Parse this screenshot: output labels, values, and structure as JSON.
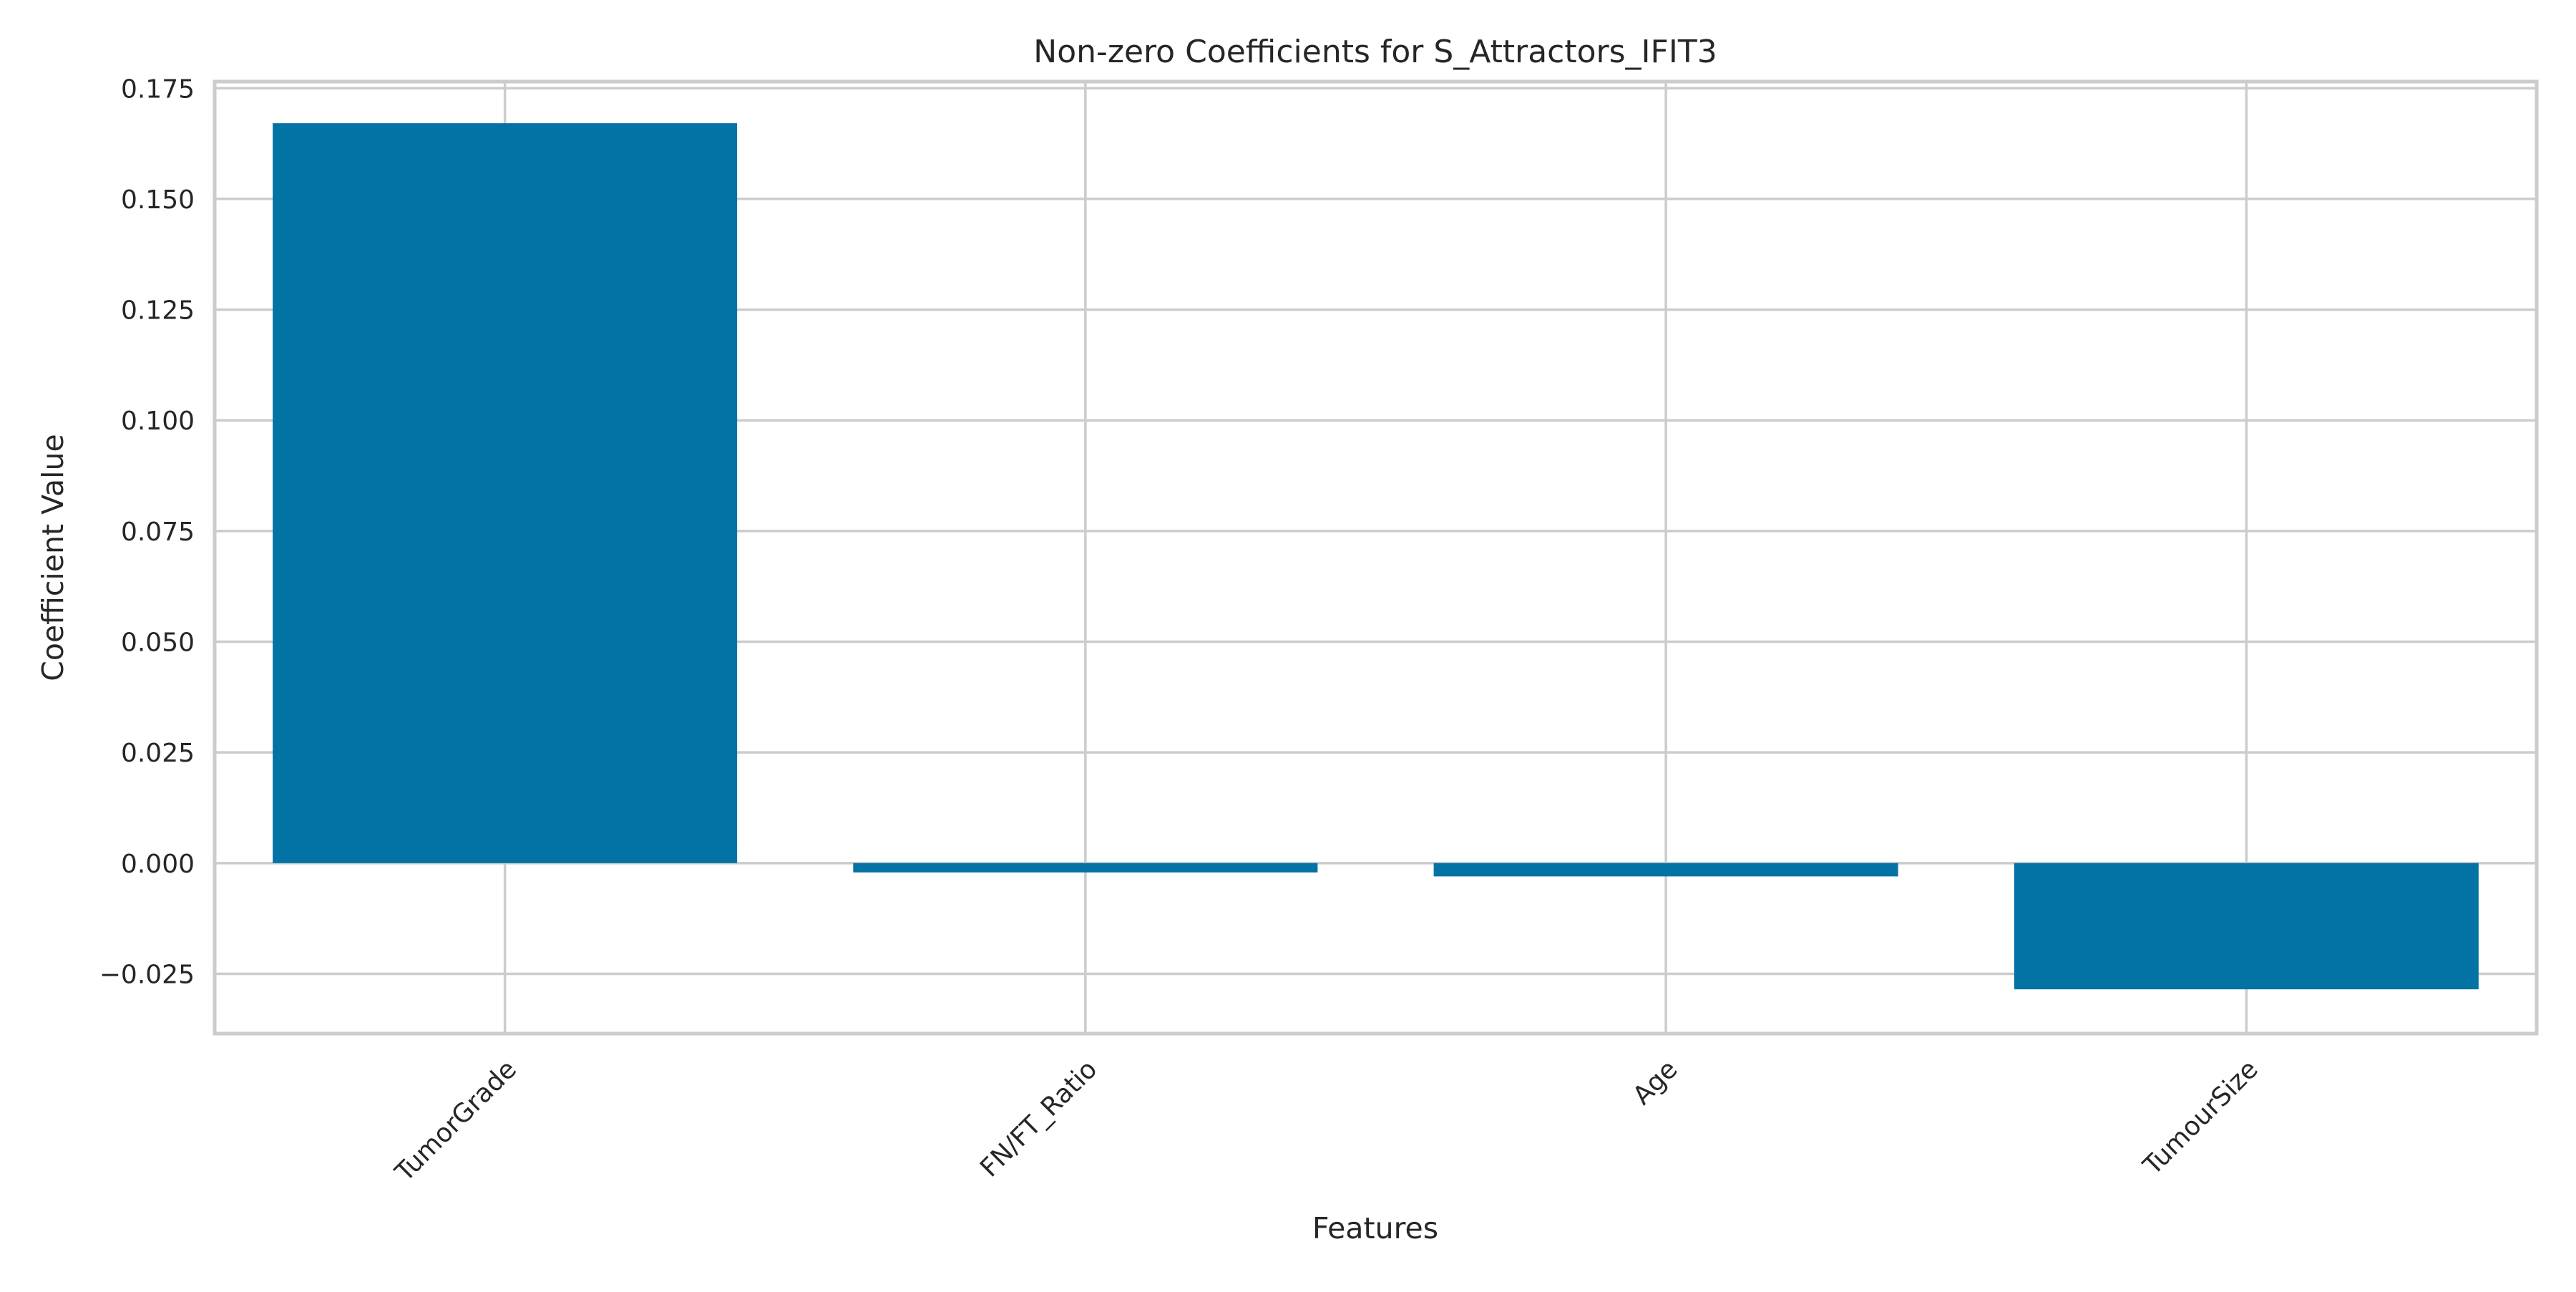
{
  "chart_data": {
    "type": "bar",
    "title": "Non-zero Coefficients for S_Attractors_IFIT3",
    "xlabel": "Features",
    "ylabel": "Coefficient Value",
    "categories": [
      "TumorGrade",
      "FN/FT_Ratio",
      "Age",
      "TumourSize"
    ],
    "values": [
      0.1671,
      -0.0021,
      -0.003,
      -0.0285
    ],
    "ylim": [
      -0.0385,
      0.1765
    ],
    "yticks": [
      -0.025,
      0.0,
      0.025,
      0.05,
      0.075,
      0.1,
      0.125,
      0.15,
      0.175
    ],
    "ytick_labels": [
      "−0.025",
      "0.000",
      "0.025",
      "0.050",
      "0.075",
      "0.100",
      "0.125",
      "0.150",
      "0.175"
    ],
    "grid": true,
    "bar_color": "#0372a4",
    "grid_color": "#cccccc",
    "axes_edge_color": "#cccccc"
  }
}
